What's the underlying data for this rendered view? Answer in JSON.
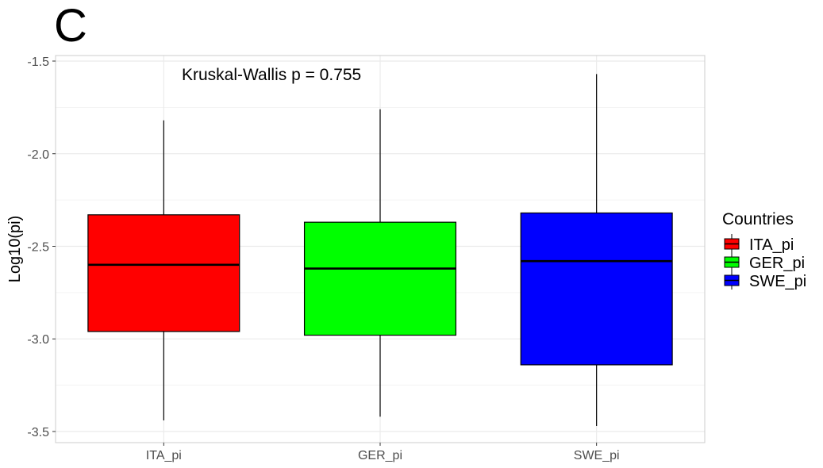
{
  "panel_label": "C",
  "chart_data": {
    "type": "box",
    "title": "",
    "xlabel": "",
    "ylabel": "Log10(pi)",
    "ylim": [
      -3.56,
      -1.47
    ],
    "yticks": [
      -3.5,
      -3.0,
      -2.5,
      -2.0,
      -1.5
    ],
    "ytick_labels": [
      "-3.5",
      "-3.0",
      "-2.5",
      "-2.0",
      "-1.5"
    ],
    "categories": [
      "ITA_pi",
      "GER_pi",
      "SWE_pi"
    ],
    "boxes": [
      {
        "name": "ITA_pi",
        "min": -3.44,
        "q1": -2.96,
        "median": -2.6,
        "q3": -2.33,
        "max": -1.82,
        "color": "#ff0000"
      },
      {
        "name": "GER_pi",
        "min": -3.42,
        "q1": -2.98,
        "median": -2.62,
        "q3": -2.37,
        "max": -1.76,
        "color": "#00ff00"
      },
      {
        "name": "SWE_pi",
        "min": -3.47,
        "q1": -3.14,
        "median": -2.58,
        "q3": -2.32,
        "max": -1.57,
        "color": "#0000ff"
      }
    ],
    "annotation": "Kruskal-Wallis p = 0.755",
    "legend": {
      "title": "Countries",
      "position": "right",
      "entries": [
        "ITA_pi",
        "GER_pi",
        "SWE_pi"
      ]
    },
    "grid": true
  }
}
